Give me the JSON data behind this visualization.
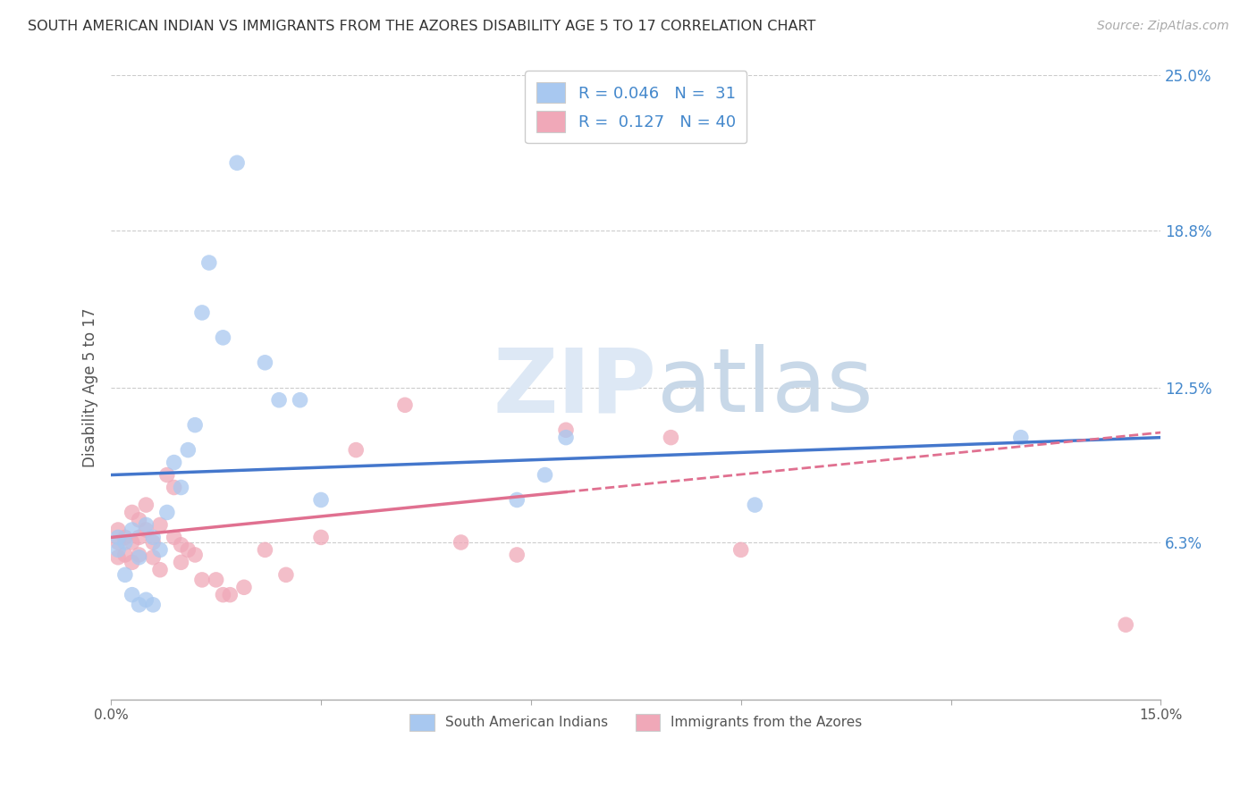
{
  "title": "SOUTH AMERICAN INDIAN VS IMMIGRANTS FROM THE AZORES DISABILITY AGE 5 TO 17 CORRELATION CHART",
  "source": "Source: ZipAtlas.com",
  "ylabel": "Disability Age 5 to 17",
  "xlim": [
    0.0,
    0.15
  ],
  "ylim": [
    0.0,
    0.25
  ],
  "yticks": [
    0.063,
    0.125,
    0.188,
    0.25
  ],
  "ytick_labels": [
    "6.3%",
    "12.5%",
    "18.8%",
    "25.0%"
  ],
  "xticks": [
    0.0,
    0.03,
    0.06,
    0.09,
    0.12,
    0.15
  ],
  "xtick_labels": [
    "0.0%",
    "",
    "",
    "",
    "",
    "15.0%"
  ],
  "R_blue": 0.046,
  "N_blue": 31,
  "R_pink": 0.127,
  "N_pink": 40,
  "blue_color": "#a8c8f0",
  "pink_color": "#f0a8b8",
  "line_blue": "#4477cc",
  "line_pink": "#e07090",
  "blue_x": [
    0.001,
    0.001,
    0.002,
    0.002,
    0.003,
    0.003,
    0.004,
    0.004,
    0.005,
    0.005,
    0.006,
    0.006,
    0.007,
    0.008,
    0.009,
    0.01,
    0.011,
    0.012,
    0.013,
    0.014,
    0.016,
    0.018,
    0.022,
    0.024,
    0.027,
    0.03,
    0.058,
    0.062,
    0.065,
    0.092,
    0.13
  ],
  "blue_y": [
    0.065,
    0.06,
    0.063,
    0.05,
    0.068,
    0.042,
    0.057,
    0.038,
    0.07,
    0.04,
    0.065,
    0.038,
    0.06,
    0.075,
    0.095,
    0.085,
    0.1,
    0.11,
    0.155,
    0.175,
    0.145,
    0.215,
    0.135,
    0.12,
    0.12,
    0.08,
    0.08,
    0.09,
    0.105,
    0.078,
    0.105
  ],
  "pink_x": [
    0.001,
    0.001,
    0.001,
    0.002,
    0.002,
    0.003,
    0.003,
    0.003,
    0.004,
    0.004,
    0.004,
    0.005,
    0.005,
    0.006,
    0.006,
    0.007,
    0.007,
    0.008,
    0.009,
    0.009,
    0.01,
    0.01,
    0.011,
    0.012,
    0.013,
    0.015,
    0.016,
    0.017,
    0.019,
    0.022,
    0.025,
    0.03,
    0.035,
    0.042,
    0.05,
    0.058,
    0.065,
    0.08,
    0.09,
    0.145
  ],
  "pink_y": [
    0.068,
    0.063,
    0.057,
    0.065,
    0.058,
    0.075,
    0.063,
    0.055,
    0.072,
    0.065,
    0.058,
    0.078,
    0.068,
    0.063,
    0.057,
    0.07,
    0.052,
    0.09,
    0.085,
    0.065,
    0.062,
    0.055,
    0.06,
    0.058,
    0.048,
    0.048,
    0.042,
    0.042,
    0.045,
    0.06,
    0.05,
    0.065,
    0.1,
    0.118,
    0.063,
    0.058,
    0.108,
    0.105,
    0.06,
    0.03
  ],
  "watermark_zip": "ZIP",
  "watermark_atlas": "atlas",
  "background_color": "#ffffff",
  "grid_color": "#cccccc",
  "blue_line_intercept": 0.09,
  "blue_line_slope": 0.1,
  "pink_line_intercept": 0.065,
  "pink_line_slope": 0.28
}
